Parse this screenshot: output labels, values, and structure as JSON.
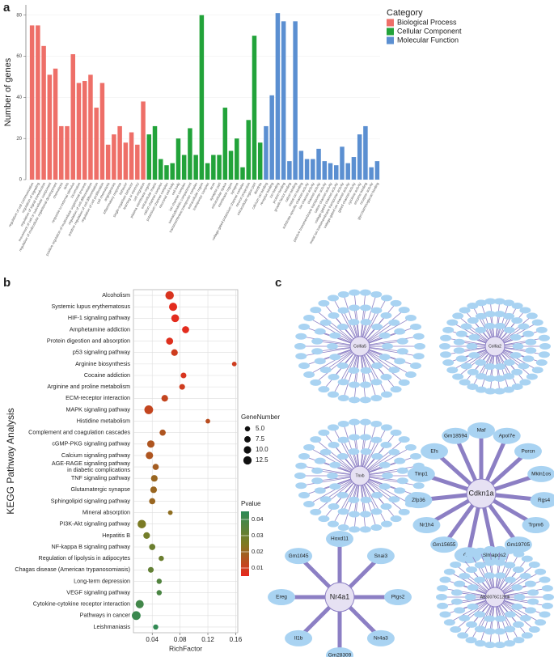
{
  "panel_labels": [
    "a",
    "b",
    "c"
  ],
  "chart_data": [
    {
      "type": "bar",
      "y_label": "Number of genes",
      "legend_title": "Category",
      "ylim": [
        0,
        85
      ],
      "yticks": [
        0,
        20,
        40,
        60,
        80
      ],
      "grid": true,
      "series": [
        {
          "name": "Biological Process",
          "color": "#ee6f68",
          "categories": [
            "regulation of cell communication",
            "regulation of signaling",
            "regulation of signal transduction",
            "movement of cell or subcellular component",
            "regulation of multicellular organismal development",
            "chemotaxis",
            "taxis",
            "response to external stimulus",
            "locomotion",
            "positive regulation of multicellular organismal process",
            "regulation of cell differentiation",
            "positive regulation of cell differentiation",
            "regulation of cell proliferation",
            "cell chemotaxis",
            "angiogenesis",
            "inflammatory response",
            "behavior",
            "single-organism behavior",
            "learning or memory",
            "cell migration"
          ],
          "values": [
            75,
            75,
            65,
            51,
            54,
            26,
            26,
            61,
            47,
            48,
            51,
            35,
            47,
            17,
            22,
            26,
            18,
            23,
            17,
            38
          ]
        },
        {
          "name": "Cellular Component",
          "color": "#22a33a",
          "categories": [
            "plasma membrane region",
            "extracellular matrix",
            "cation channel complex",
            "potassium channel complex",
            "neuronal cell body",
            "cell body",
            "ion channel complex",
            "somatodendritic compartment",
            "transmembrane transporter complex",
            "extracellular region",
            "transporter complex",
            "axon",
            "synapse part",
            "extracellular space",
            "membrane region",
            "synapse",
            "voltage-gated potassium channel complex",
            "neuron projection",
            "extracellular region part",
            "dendrite"
          ],
          "values": [
            22,
            26,
            10,
            7,
            8,
            20,
            12,
            25,
            12,
            80,
            8,
            12,
            12,
            35,
            14,
            20,
            6,
            29,
            70,
            18
          ]
        },
        {
          "name": "Molecular Function",
          "color": "#5b8fd1",
          "categories": [
            "calcium ion binding",
            "receptor binding",
            "ion binding",
            "protein binding",
            "growth factor binding",
            "cation binding",
            "metal ion binding",
            "substrate-specific channel activity",
            "ion channel activity",
            "channel activity",
            "passive transmembrane transporter activity",
            "cation channel activity",
            "voltage-gated channel activity",
            "metal ion transmembrane transporter activity",
            "voltage-gated ion channel activity",
            "gated channel activity",
            "cytokine activity",
            "enzyme binding",
            "receptor activity",
            "glycosaminoglycan binding"
          ],
          "values": [
            26,
            41,
            81,
            77,
            9,
            77,
            14,
            10,
            10,
            15,
            9,
            8,
            7,
            16,
            8,
            11,
            22,
            26,
            6,
            9
          ]
        }
      ]
    },
    {
      "type": "bubble",
      "y_label": "KEGG Pathway Analysis",
      "x_label": "RichFactor",
      "size_title": "GeneNumber",
      "color_title": "Pvalue",
      "xlim": [
        0.013,
        0.163
      ],
      "xticks": [
        0.04,
        0.08,
        0.12,
        0.16
      ],
      "grid": true,
      "size_ticks": [
        {
          "value": 5,
          "label": "5.0"
        },
        7.5,
        {
          "value": 10,
          "label": "10.0"
        },
        12.5
      ],
      "color_lim": [
        0.005,
        0.045
      ],
      "color_ticks": [
        0.01,
        0.02,
        0.03,
        0.04
      ],
      "colors": [
        "#e8281e",
        "#7f7a22",
        "#2e8b57"
      ],
      "categories": [
        "Alcoholism",
        "Systemic lupus erythematosus",
        "HIF-1 signaling pathway",
        "Amphetamine addiction",
        "Protein digestion and absorption",
        "p53 signaling pathway",
        "Arginine biosynthesis",
        "Cocaine addiction",
        "Arginine and proline metabolism",
        "ECM-receptor interaction",
        "MAPK signaling pathway",
        "Histidine metabolism",
        "Complement and coagulation cascades",
        "cGMP-PKG signaling pathway",
        "Calcium signaling pathway",
        "AGE-RAGE signaling pathway\nin diabetic complications",
        "TNF signaling pathway",
        "Glutamatergic synapse",
        "Sphingolipid signaling pathway",
        "Mineral absorption",
        "PI3K-Akt signaling pathway",
        "Hepatitis B",
        "NF-kappa B signaling pathway",
        "Regulation of lipolysis in adipocytes",
        "Chagas disease (American trypanosomiasis)",
        "Long-term depression",
        "VEGF signaling pathway",
        "Cytokine-cytokine receptor interaction",
        "Pathways in cancer",
        "Leishmaniasis"
      ],
      "x": [
        0.065,
        0.07,
        0.073,
        0.088,
        0.065,
        0.072,
        0.158,
        0.085,
        0.083,
        0.058,
        0.035,
        0.12,
        0.055,
        0.038,
        0.036,
        0.045,
        0.043,
        0.042,
        0.04,
        0.066,
        0.025,
        0.032,
        0.04,
        0.053,
        0.038,
        0.05,
        0.05,
        0.022,
        0.017,
        0.045
      ],
      "sizes": [
        13,
        12,
        11,
        9,
        9,
        8,
        4,
        6,
        6,
        8,
        14,
        4,
        7,
        10,
        10,
        7,
        8,
        8,
        7,
        4,
        13,
        8,
        7,
        5,
        6,
        5,
        5,
        12,
        14,
        5
      ],
      "pvalues": [
        0.008,
        0.006,
        0.006,
        0.006,
        0.007,
        0.01,
        0.01,
        0.008,
        0.01,
        0.012,
        0.012,
        0.014,
        0.016,
        0.016,
        0.016,
        0.018,
        0.02,
        0.02,
        0.02,
        0.022,
        0.026,
        0.028,
        0.03,
        0.03,
        0.032,
        0.036,
        0.038,
        0.04,
        0.042,
        0.044
      ]
    }
  ],
  "networks": [
    {
      "hub": "Col6a5"
    },
    {
      "hub": "Col6a2"
    },
    {
      "hub": "Tnxb"
    },
    {
      "hub": "Cdkn1a",
      "nodes": [
        "Maf",
        "Apol7e",
        "Porcn",
        "Mkln1os",
        "Rgs4",
        "Trpm6",
        "Gm19705",
        "Slmapos2",
        "Gli1",
        "Gm15655",
        "Nr1h4",
        "Zfp36",
        "Tinp1",
        "Efs",
        "Gm18594"
      ]
    },
    {
      "hub": "Nr4a1",
      "nodes": [
        "Hoxd11",
        "Snai3",
        "Ptgs2",
        "Nr4a3",
        "Gm28309",
        "Il1b",
        "Ereg",
        "Gm1045"
      ]
    },
    {
      "hub": "A830076C12Rik"
    }
  ]
}
